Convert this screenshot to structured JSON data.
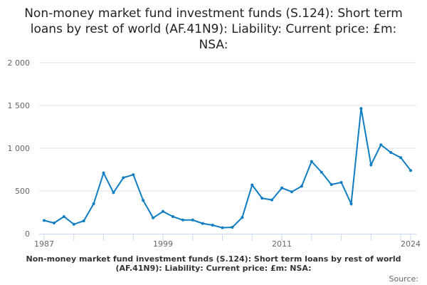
{
  "chart_data": {
    "type": "line",
    "title": "Non-money market fund investment funds (S.124): Short term loans by rest of world (AF.41N9): Liability: Current price: £m: NSA:",
    "footer_title": "Non-money market fund investment funds (S.124): Short term loans by rest of world (AF.41N9): Liability: Current price: £m: NSA:",
    "source_label": "Source:",
    "x": [
      1987,
      1988,
      1989,
      1990,
      1991,
      1992,
      1993,
      1994,
      1995,
      1996,
      1997,
      1998,
      1999,
      2000,
      2001,
      2002,
      2003,
      2004,
      2005,
      2006,
      2007,
      2008,
      2009,
      2010,
      2011,
      2012,
      2013,
      2014,
      2015,
      2016,
      2017,
      2018,
      2019,
      2020,
      2021,
      2022,
      2023,
      2024
    ],
    "values": [
      155,
      125,
      200,
      110,
      150,
      350,
      710,
      480,
      655,
      690,
      390,
      185,
      260,
      200,
      160,
      160,
      120,
      100,
      70,
      75,
      190,
      570,
      415,
      395,
      535,
      490,
      555,
      845,
      720,
      575,
      600,
      350,
      1465,
      805,
      1040,
      950,
      890,
      740
    ],
    "ylim": [
      0,
      2000
    ],
    "yticks": [
      0,
      500,
      1000,
      1500,
      2000
    ],
    "ytick_labels": [
      "0",
      "500",
      "1 000",
      "1 500",
      "2 000"
    ],
    "xtick_labels": [
      "1987",
      "1999",
      "2011",
      "2024"
    ],
    "grid": true,
    "line_color": "#0f7dc2"
  }
}
